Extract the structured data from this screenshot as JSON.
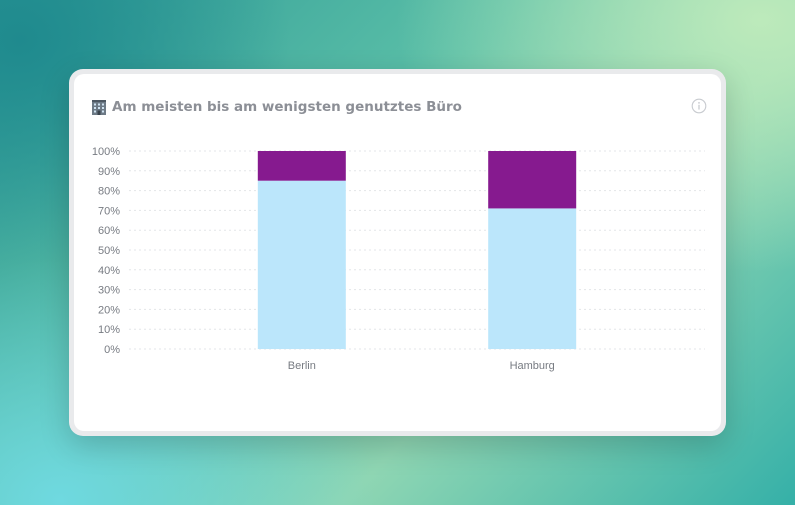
{
  "card": {
    "title": "Am meisten bis am wenigsten genutztes Büro",
    "title_icon": "office-building-icon",
    "info_icon": "info-icon"
  },
  "chart_data": {
    "type": "bar",
    "stacked": true,
    "categories": [
      "Berlin",
      "Hamburg"
    ],
    "series": [
      {
        "values": [
          85,
          71
        ],
        "color": "#bbe6fb"
      },
      {
        "values": [
          15,
          29
        ],
        "color": "#861a8f"
      }
    ],
    "ylim": [
      0,
      100
    ],
    "yticks": [
      "0%",
      "10%",
      "20%",
      "30%",
      "40%",
      "50%",
      "60%",
      "70%",
      "80%",
      "90%",
      "100%"
    ],
    "grid": true,
    "legend": "none"
  }
}
